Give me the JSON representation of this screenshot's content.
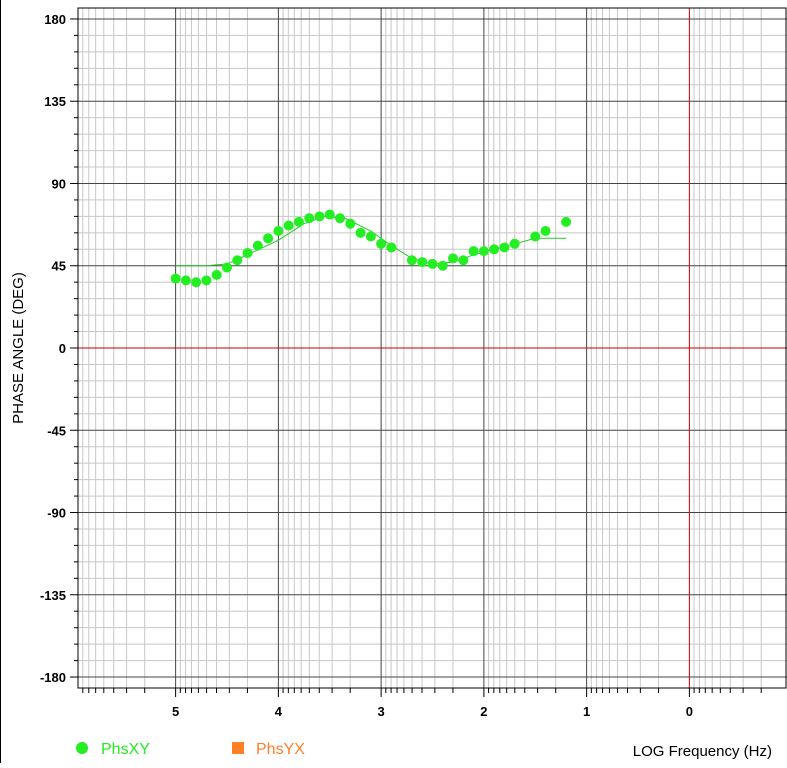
{
  "chart_data": {
    "type": "scatter",
    "title": "",
    "xlabel": "LOG Frequency (Hz)",
    "ylabel": "PHASE ANGLE (DEG)",
    "xlim": [
      5.95,
      -0.95
    ],
    "ylim": [
      -186,
      186
    ],
    "x_reversed": true,
    "x_ticks": [
      5,
      4,
      3,
      2,
      1,
      0
    ],
    "x_tick_labels": [
      "5",
      "4",
      "3",
      "2",
      "1",
      "0"
    ],
    "y_ticks": [
      180,
      135,
      90,
      45,
      0,
      -45,
      -90,
      -135,
      -180
    ],
    "y_tick_labels": [
      "180",
      "135",
      "90",
      "45",
      "0",
      "-45",
      "-90",
      "-135",
      "-180"
    ],
    "grid": true,
    "zero_lines_color": "#cc0000",
    "legend_placement": "bottom",
    "series": [
      {
        "name": "PhsXY",
        "color": "#22ee22",
        "marker": "circle",
        "x": [
          5.0,
          4.9,
          4.8,
          4.7,
          4.6,
          4.5,
          4.4,
          4.3,
          4.2,
          4.1,
          4.0,
          3.9,
          3.8,
          3.7,
          3.6,
          3.5,
          3.4,
          3.3,
          3.2,
          3.1,
          3.0,
          2.9,
          2.7,
          2.6,
          2.5,
          2.4,
          2.3,
          2.2,
          2.1,
          2.0,
          1.9,
          1.8,
          1.7,
          1.5,
          1.4,
          1.2
        ],
        "y": [
          38,
          37,
          36,
          37,
          40,
          44,
          48,
          52,
          56,
          60,
          64,
          67,
          69,
          71,
          72,
          73,
          71,
          68,
          63,
          61,
          57,
          55,
          48,
          47,
          46,
          45,
          49,
          48,
          53,
          53,
          54,
          55,
          57,
          61,
          64,
          69
        ]
      },
      {
        "name": "PhsYX",
        "color": "#ff7f27",
        "marker": "square",
        "x": [],
        "y": []
      }
    ],
    "fit_line": {
      "color": "#22cc22",
      "x": [
        5.0,
        4.7,
        4.5,
        4.3,
        4.0,
        3.75,
        3.55,
        3.35,
        3.1,
        2.9,
        2.7,
        2.5,
        2.3,
        2.1,
        1.9,
        1.7,
        1.5,
        1.2
      ],
      "y": [
        45,
        45,
        46,
        51,
        59,
        68,
        72,
        71,
        64,
        56,
        49,
        46,
        47,
        51,
        54,
        57,
        60,
        60
      ]
    }
  }
}
